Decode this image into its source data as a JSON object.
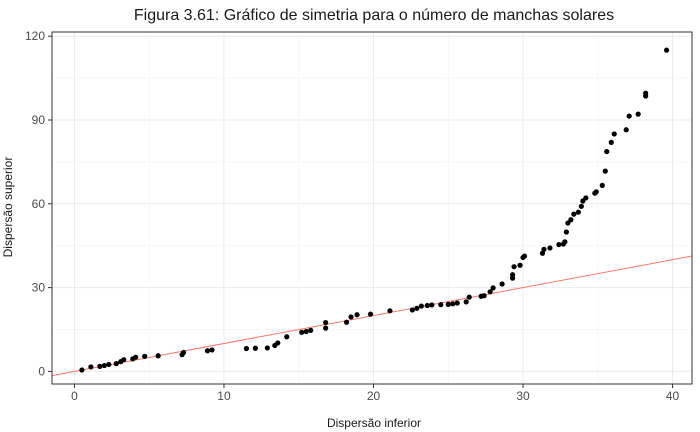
{
  "chart_data": {
    "type": "scatter",
    "title": "Figura 3.61: Gráfico de simetria para o número de manchas solares",
    "xlabel": "Dispersão inferior",
    "ylabel": "Dispersão superior",
    "xlim": [
      -1.5,
      41.3
    ],
    "ylim": [
      -4.5,
      121.5
    ],
    "x_ticks": [
      0,
      10,
      20,
      30,
      40
    ],
    "y_ticks": [
      0,
      30,
      60,
      90,
      120
    ],
    "x_tick_labels": [
      "0",
      "10",
      "20",
      "30",
      "40"
    ],
    "y_tick_labels": [
      "0",
      "30",
      "60",
      "90",
      "120"
    ],
    "grid": true,
    "reference_line": {
      "intercept": 0,
      "slope": 1,
      "color": "#f8766d"
    },
    "point_color": "#000000",
    "points": [
      [
        0.5,
        0.5
      ],
      [
        1.1,
        1.6
      ],
      [
        1.7,
        1.8
      ],
      [
        2.0,
        2.1
      ],
      [
        2.3,
        2.5
      ],
      [
        2.8,
        2.8
      ],
      [
        3.1,
        3.5
      ],
      [
        3.3,
        4.2
      ],
      [
        3.9,
        4.5
      ],
      [
        4.1,
        5.1
      ],
      [
        4.7,
        5.4
      ],
      [
        5.6,
        5.6
      ],
      [
        7.2,
        6.0
      ],
      [
        7.3,
        6.8
      ],
      [
        8.9,
        7.4
      ],
      [
        9.2,
        7.7
      ],
      [
        11.5,
        8.2
      ],
      [
        12.1,
        8.3
      ],
      [
        12.9,
        8.4
      ],
      [
        13.4,
        9.3
      ],
      [
        13.6,
        10.2
      ],
      [
        14.2,
        12.4
      ],
      [
        15.2,
        14.0
      ],
      [
        15.5,
        14.3
      ],
      [
        15.8,
        14.7
      ],
      [
        16.8,
        15.5
      ],
      [
        16.8,
        17.5
      ],
      [
        18.2,
        17.6
      ],
      [
        18.5,
        19.5
      ],
      [
        18.9,
        20.3
      ],
      [
        19.8,
        20.5
      ],
      [
        21.1,
        21.7
      ],
      [
        22.6,
        22.0
      ],
      [
        22.9,
        22.6
      ],
      [
        23.2,
        23.4
      ],
      [
        23.6,
        23.6
      ],
      [
        23.9,
        23.8
      ],
      [
        24.5,
        23.9
      ],
      [
        25.0,
        24.0
      ],
      [
        25.3,
        24.2
      ],
      [
        25.6,
        24.5
      ],
      [
        26.2,
        24.9
      ],
      [
        26.4,
        26.6
      ],
      [
        27.2,
        26.9
      ],
      [
        27.4,
        27.1
      ],
      [
        27.8,
        28.5
      ],
      [
        28.0,
        29.9
      ],
      [
        28.6,
        31.3
      ],
      [
        29.3,
        33.4
      ],
      [
        29.3,
        34.6
      ],
      [
        29.4,
        37.5
      ],
      [
        29.8,
        38.0
      ],
      [
        30.0,
        40.8
      ],
      [
        30.1,
        41.3
      ],
      [
        31.3,
        42.3
      ],
      [
        31.4,
        43.7
      ],
      [
        31.8,
        44.2
      ],
      [
        32.4,
        45.4
      ],
      [
        32.7,
        45.6
      ],
      [
        32.8,
        46.4
      ],
      [
        32.9,
        49.9
      ],
      [
        33.0,
        53.1
      ],
      [
        33.2,
        54.3
      ],
      [
        33.4,
        56.3
      ],
      [
        33.7,
        57.0
      ],
      [
        33.9,
        59.1
      ],
      [
        34.0,
        61.0
      ],
      [
        34.2,
        62.1
      ],
      [
        34.8,
        63.8
      ],
      [
        34.9,
        64.3
      ],
      [
        35.3,
        66.6
      ],
      [
        35.5,
        71.7
      ],
      [
        35.6,
        78.7
      ],
      [
        35.9,
        82.0
      ],
      [
        36.1,
        85.0
      ],
      [
        36.9,
        86.5
      ],
      [
        37.1,
        91.4
      ],
      [
        37.7,
        92.1
      ],
      [
        38.2,
        98.6
      ],
      [
        38.2,
        99.6
      ],
      [
        39.6,
        115.0
      ]
    ]
  }
}
